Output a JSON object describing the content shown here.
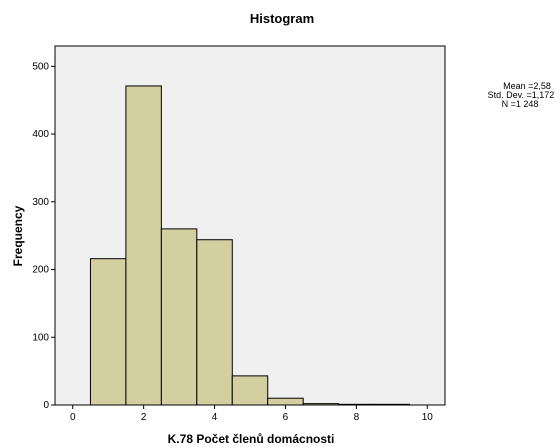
{
  "chart_data": {
    "type": "bar",
    "title": "Histogram",
    "xlabel": "K.78 Počet členů domácnosti",
    "ylabel": "Frequency",
    "bins": [
      {
        "from": 0.5,
        "to": 1.5,
        "value": 216
      },
      {
        "from": 1.5,
        "to": 2.5,
        "value": 471
      },
      {
        "from": 2.5,
        "to": 3.5,
        "value": 260
      },
      {
        "from": 3.5,
        "to": 4.5,
        "value": 244
      },
      {
        "from": 4.5,
        "to": 5.5,
        "value": 43
      },
      {
        "from": 5.5,
        "to": 6.5,
        "value": 10
      },
      {
        "from": 6.5,
        "to": 7.5,
        "value": 2
      },
      {
        "from": 7.5,
        "to": 8.5,
        "value": 1
      },
      {
        "from": 8.5,
        "to": 9.5,
        "value": 1
      }
    ],
    "xlim": [
      -0.5,
      10.5
    ],
    "ylim": [
      0,
      530
    ],
    "xticks": [
      "0",
      "2",
      "4",
      "6",
      "8",
      "10"
    ],
    "yticks": [
      "0",
      "100",
      "200",
      "300",
      "400",
      "500"
    ],
    "grid": false,
    "stats": {
      "mean": "Mean =2,58",
      "std": "Std. Dev. =1,172",
      "n": "N =1 248"
    },
    "colors": {
      "bar_fill": "#d3cfa1",
      "bar_stroke": "#000000",
      "plot_background": "#f0f0f0"
    }
  }
}
